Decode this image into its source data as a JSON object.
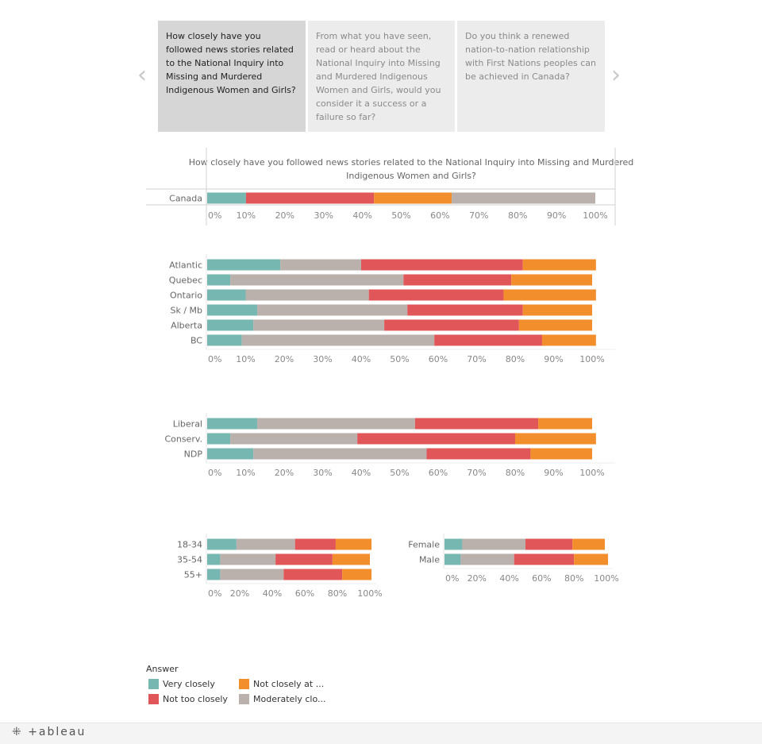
{
  "colors": {
    "very_closely": "#76b7b2",
    "not_too_closely": "#e15759",
    "not_closely_at_all": "#f28e2b",
    "moderately_closely": "#bab0ac",
    "axis": "#999999",
    "grid": "#e8e8e8"
  },
  "nav": {
    "prev_icon": "‹",
    "next_icon": "›"
  },
  "stories": [
    {
      "text": "How closely have you followed news stories related to the National Inquiry into Missing and Murdered Indigenous Women and Girls?",
      "active": true
    },
    {
      "text": "From what you have seen, read or heard about the National Inquiry into Missing and Murdered Indigenous Women and Girls, would you consider it a success or a failure so far?",
      "active": false
    },
    {
      "text": "Do you think a renewed nation-to-nation relationship with First Nations peoples can be achieved in Canada?",
      "active": false
    }
  ],
  "chart_data": [
    {
      "type": "bar",
      "stacked": true,
      "orientation": "horizontal",
      "title": "How closely have you followed news stories related to the National Inquiry into Missing and Murdered Indigenous Women and Girls?",
      "categories": [
        "Canada"
      ],
      "series_order": [
        "Very closely",
        "Not too closely",
        "Not closely at all",
        "Moderately closely"
      ],
      "series": [
        {
          "name": "Very closely",
          "values": [
            10
          ]
        },
        {
          "name": "Not too closely",
          "values": [
            33
          ]
        },
        {
          "name": "Not closely at all",
          "values": [
            20
          ]
        },
        {
          "name": "Moderately closely",
          "values": [
            37
          ]
        }
      ],
      "xlim": [
        0,
        100
      ],
      "xticks": [
        "0%",
        "10%",
        "20%",
        "30%",
        "40%",
        "50%",
        "60%",
        "70%",
        "80%",
        "90%",
        "100%"
      ]
    },
    {
      "type": "bar",
      "stacked": true,
      "orientation": "horizontal",
      "categories": [
        "Atlantic",
        "Quebec",
        "Ontario",
        "Sk / Mb",
        "Alberta",
        "BC"
      ],
      "series_order": [
        "Very closely",
        "Moderately closely",
        "Not too closely",
        "Not closely at all"
      ],
      "series": [
        {
          "name": "Very closely",
          "values": [
            19,
            6,
            10,
            13,
            12,
            9
          ]
        },
        {
          "name": "Moderately closely",
          "values": [
            21,
            45,
            32,
            39,
            34,
            50
          ]
        },
        {
          "name": "Not too closely",
          "values": [
            42,
            28,
            35,
            30,
            35,
            28
          ]
        },
        {
          "name": "Not closely at all",
          "values": [
            19,
            21,
            24,
            18,
            19,
            14
          ]
        }
      ],
      "xlim": [
        0,
        100
      ],
      "xticks": [
        "0%",
        "10%",
        "20%",
        "30%",
        "40%",
        "50%",
        "60%",
        "70%",
        "80%",
        "90%",
        "100%"
      ]
    },
    {
      "type": "bar",
      "stacked": true,
      "orientation": "horizontal",
      "categories": [
        "Liberal",
        "Conserv.",
        "NDP"
      ],
      "series_order": [
        "Very closely",
        "Moderately closely",
        "Not too closely",
        "Not closely at all"
      ],
      "series": [
        {
          "name": "Very closely",
          "values": [
            13,
            6,
            12
          ]
        },
        {
          "name": "Moderately closely",
          "values": [
            41,
            33,
            45
          ]
        },
        {
          "name": "Not too closely",
          "values": [
            32,
            41,
            27
          ]
        },
        {
          "name": "Not closely at all",
          "values": [
            14,
            21,
            16
          ]
        }
      ],
      "xlim": [
        0,
        100
      ],
      "xticks": [
        "0%",
        "10%",
        "20%",
        "30%",
        "40%",
        "50%",
        "60%",
        "70%",
        "80%",
        "90%",
        "100%"
      ]
    },
    {
      "type": "bar",
      "stacked": true,
      "orientation": "horizontal",
      "categories": [
        "18-34",
        "35-54",
        "55+"
      ],
      "series_order": [
        "Very closely",
        "Moderately closely",
        "Not too closely",
        "Not closely at all"
      ],
      "series": [
        {
          "name": "Very closely",
          "values": [
            18,
            8,
            8
          ]
        },
        {
          "name": "Moderately closely",
          "values": [
            36,
            34,
            39
          ]
        },
        {
          "name": "Not too closely",
          "values": [
            25,
            35,
            36
          ]
        },
        {
          "name": "Not closely at all",
          "values": [
            22,
            23,
            18
          ]
        }
      ],
      "xlim": [
        0,
        100
      ],
      "xticks": [
        "0%",
        "20%",
        "40%",
        "60%",
        "80%",
        "100%"
      ]
    },
    {
      "type": "bar",
      "stacked": true,
      "orientation": "horizontal",
      "categories": [
        "Female",
        "Male"
      ],
      "series_order": [
        "Very closely",
        "Moderately closely",
        "Not too closely",
        "Not closely at all"
      ],
      "series": [
        {
          "name": "Very closely",
          "values": [
            11,
            10
          ]
        },
        {
          "name": "Moderately closely",
          "values": [
            39,
            33
          ]
        },
        {
          "name": "Not too closely",
          "values": [
            29,
            37
          ]
        },
        {
          "name": "Not closely at all",
          "values": [
            20,
            21
          ]
        }
      ],
      "xlim": [
        0,
        100
      ],
      "xticks": [
        "0%",
        "20%",
        "40%",
        "60%",
        "80%",
        "100%"
      ]
    }
  ],
  "legend": {
    "title": "Answer",
    "items": [
      {
        "label": "Very closely",
        "key": "very_closely"
      },
      {
        "label": "Not closely at ...",
        "key": "not_closely_at_all"
      },
      {
        "label": "Not too closely",
        "key": "not_too_closely"
      },
      {
        "label": "Moderately clo...",
        "key": "moderately_closely"
      }
    ]
  },
  "footer": {
    "logo_text": "+ableau"
  }
}
